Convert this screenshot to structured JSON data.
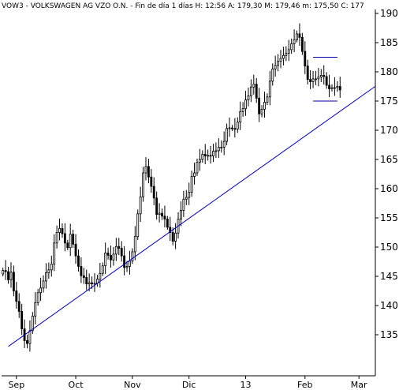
{
  "header": {
    "symbol": "VOW3",
    "name": "VOLKSWAGEN AG VZO O.N.",
    "period": "Fin de día 1 días",
    "high": "H: 12:56",
    "ask": "A: 179,30",
    "mid": "M: 179,46",
    "m": "m: 175,50",
    "c": "C: 177"
  },
  "chart_data": {
    "type": "candlestick",
    "title": "",
    "xlabel": "",
    "ylabel": "",
    "ylim": [
      130,
      190
    ],
    "y_ticks": [
      135,
      140,
      145,
      150,
      155,
      160,
      165,
      170,
      175,
      180,
      185,
      190
    ],
    "y_axis_position": "right",
    "grid": false,
    "x_tick_labels": [
      "Sep",
      "Oct",
      "Nov",
      "Dic",
      "13",
      "Feb",
      "Mar"
    ],
    "x_tick_index": [
      5,
      27,
      48,
      69,
      90,
      112,
      132
    ],
    "n_sessions": 138,
    "colors": {
      "bars": "#000000",
      "trendline": "#0000cc",
      "channel": "#0000aa",
      "axis": "#000000"
    },
    "trendline": {
      "start": [
        2,
        133
      ],
      "end": [
        138,
        177.5
      ]
    },
    "channel": {
      "x_start": 115,
      "x_end": 124,
      "upper": 182.5,
      "lower": 175
    },
    "ohlc_close": [
      146,
      145.8,
      144.4,
      145.7,
      142.5,
      140.7,
      139,
      136,
      134,
      133.5,
      135.7,
      138.2,
      140.5,
      142.2,
      143,
      144.2,
      145.6,
      146.1,
      147.1,
      150.7,
      152.5,
      153.2,
      152.3,
      150.7,
      149.9,
      152.2,
      150.5,
      148.5,
      146.7,
      145.1,
      144.8,
      143.7,
      143.9,
      143.7,
      143.8,
      144.5,
      145.5,
      146.8,
      149,
      148.6,
      147.8,
      148.8,
      150.1,
      149.8,
      148.5,
      146.5,
      146.7,
      147.6,
      149.2,
      151.8,
      155.7,
      158.6,
      162.7,
      163.8,
      162,
      160.4,
      158.4,
      155.6,
      155.8,
      155.3,
      154.8,
      153.4,
      152.5,
      151,
      152.4,
      154.8,
      156.3,
      158.2,
      158.5,
      159.4,
      162.1,
      162.7,
      164.5,
      165,
      165.9,
      165.6,
      165.7,
      165.6,
      166.4,
      166.5,
      167.1,
      167.1,
      168.1,
      170.3,
      170.4,
      170.3,
      170.2,
      171.4,
      173.2,
      173.7,
      175.2,
      175.9,
      177.4,
      177.9,
      175.5,
      172.8,
      173.6,
      174.8,
      175.7,
      178.4,
      180.5,
      181.1,
      181.8,
      182.3,
      182.8,
      183.2,
      183.8,
      184.8,
      185.5,
      186.5,
      185.9,
      183.5,
      181,
      178.7,
      178.3,
      178.8,
      178.8,
      179.1,
      179.4,
      179.2,
      177.7,
      177.1,
      177.3,
      177.3,
      177.5,
      176.9
    ]
  }
}
